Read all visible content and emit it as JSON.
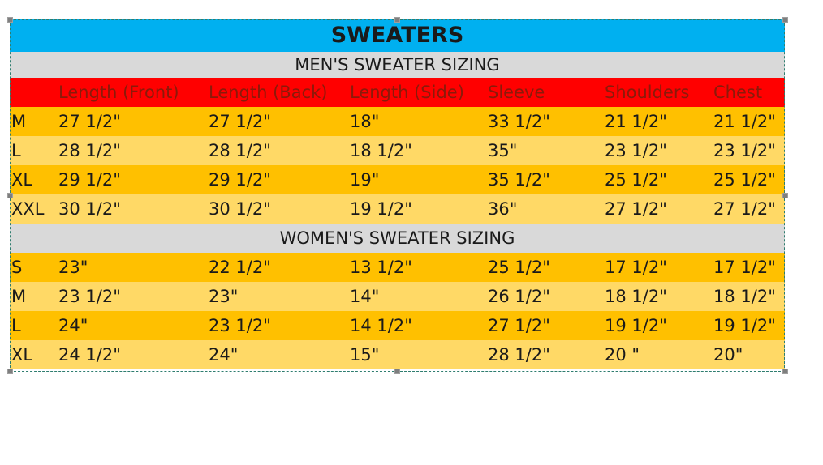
{
  "title": "SWEATERS",
  "columns": [
    "",
    "Length (Front)",
    "Length (Back)",
    "Length (Side)",
    "Sleeve",
    "Shoulders",
    "Chest"
  ],
  "men": {
    "heading": "MEN'S SWEATER SIZING",
    "rows": [
      [
        "M",
        "27 1/2\"",
        "27 1/2\"",
        "18\"",
        "33 1/2\"",
        "21 1/2\"",
        "21 1/2\""
      ],
      [
        "L",
        "28 1/2\"",
        "28 1/2\"",
        "18 1/2\"",
        "35\"",
        "23 1/2\"",
        "23 1/2\""
      ],
      [
        "XL",
        "29 1/2\"",
        "29 1/2\"",
        "19\"",
        "35 1/2\"",
        "25 1/2\"",
        "25 1/2\""
      ],
      [
        "XXL",
        "30 1/2\"",
        "30 1/2\"",
        "19 1/2\"",
        "36\"",
        "27 1/2\"",
        "27 1/2\""
      ]
    ]
  },
  "women": {
    "heading": "WOMEN'S SWEATER SIZING",
    "rows": [
      [
        "S",
        "23\"",
        "22 1/2\"",
        "13 1/2\"",
        "25 1/2\"",
        "17 1/2\"",
        "17 1/2\""
      ],
      [
        "M",
        "23 1/2\"",
        "23\"",
        "14\"",
        "26 1/2\"",
        "18 1/2\"",
        "18 1/2\""
      ],
      [
        "L",
        "24\"",
        "23 1/2\"",
        "14 1/2\"",
        "27 1/2\"",
        "19 1/2\"",
        "19 1/2\""
      ],
      [
        "XL",
        "24 1/2\"",
        "24\"",
        "15\"",
        "28 1/2\"",
        "20 \"",
        "20\""
      ]
    ]
  },
  "colors": {
    "title_band": "#00b0f0",
    "section_band": "#d9d9d9",
    "header_band": "#ff0000",
    "row_dark": "#ffc000",
    "row_light": "#ffd966"
  }
}
